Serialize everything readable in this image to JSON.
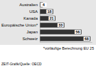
{
  "chart_data": {
    "type": "bar",
    "orientation": "horizontal",
    "categories": [
      "Australien",
      "USA",
      "Kanada",
      "Europäische Union*",
      "Japan",
      "Schweiz"
    ],
    "values": [
      4,
      18,
      21,
      33,
      56,
      68
    ],
    "color": "#333333",
    "xlim": [
      0,
      70
    ],
    "xticks": [],
    "tick_labels": "y",
    "data_labels": true,
    "footnote": "*vorläufige Berechnung EU 25",
    "source": "ZEIT-Grafik/Quelle: OECD"
  }
}
